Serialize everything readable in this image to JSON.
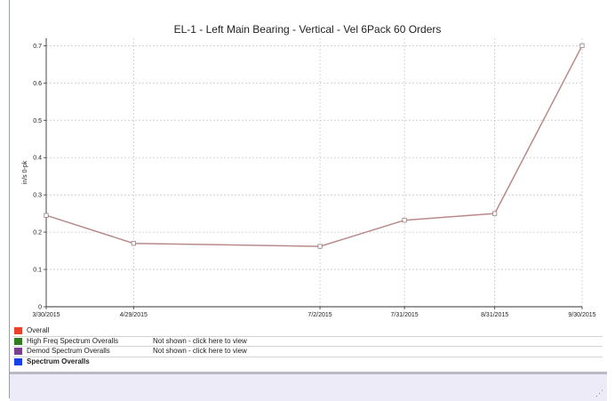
{
  "chart_data": {
    "type": "line",
    "title": "EL-1 - Left Main Bearing - Vertical - Vel 6Pack 60 Orders",
    "ylabel": "in/s 0-pk",
    "xlabel": "",
    "x": [
      "3/30/2015",
      "4/29/2015",
      "7/2/2015",
      "7/31/2015",
      "8/31/2015",
      "9/30/2015"
    ],
    "x_days": [
      0,
      30,
      94,
      123,
      154,
      184
    ],
    "values": [
      0.245,
      0.17,
      0.162,
      0.232,
      0.25,
      0.7
    ],
    "ylim": [
      0,
      0.72
    ],
    "yticks": [
      "0",
      "0.1",
      "0.2",
      "0.3",
      "0.4",
      "0.5",
      "0.6",
      "0.7"
    ],
    "grid": true,
    "line_color": "#b88a8c"
  },
  "legend": {
    "items": [
      {
        "name": "Overall",
        "color": "#e8412c",
        "status": "",
        "bold": false
      },
      {
        "name": "High Freq Spectrum Overalls",
        "color": "#2f7d1e",
        "status": "Not shown - click here to view",
        "bold": false
      },
      {
        "name": "Demod Spectrum Overalls",
        "color": "#7b3f8f",
        "status": "Not shown - click here to view",
        "bold": false
      },
      {
        "name": "Spectrum Overalls",
        "color": "#1a3ee8",
        "status": "",
        "bold": true
      }
    ]
  }
}
